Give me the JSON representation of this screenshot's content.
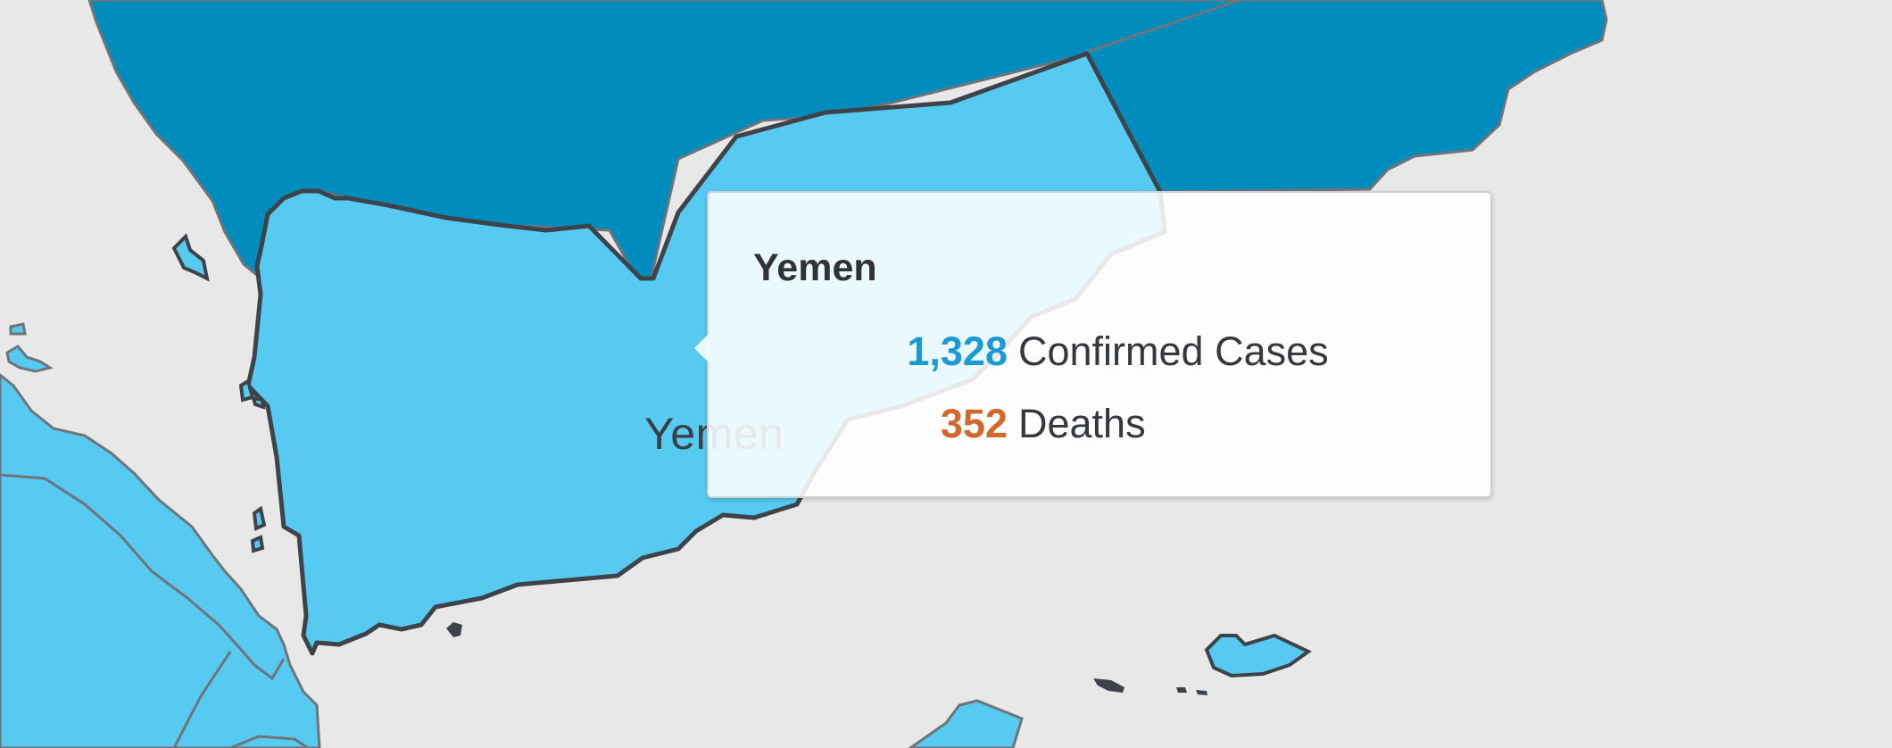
{
  "map": {
    "highlighted_country_label": "Yemen",
    "colors": {
      "ocean_background": "#e8e8e8",
      "highlight_fill": "#56caf1",
      "neighbor_fill": "#008dbe",
      "border_dark": "#3e434a",
      "border_light": "#707479"
    }
  },
  "tooltip": {
    "title": "Yemen",
    "confirmed_cases_value": "1,328",
    "confirmed_cases_label": "Confirmed Cases",
    "deaths_value": "352",
    "deaths_label": "Deaths",
    "colors": {
      "cases": "#1b9ad6",
      "deaths": "#d2692c"
    }
  }
}
